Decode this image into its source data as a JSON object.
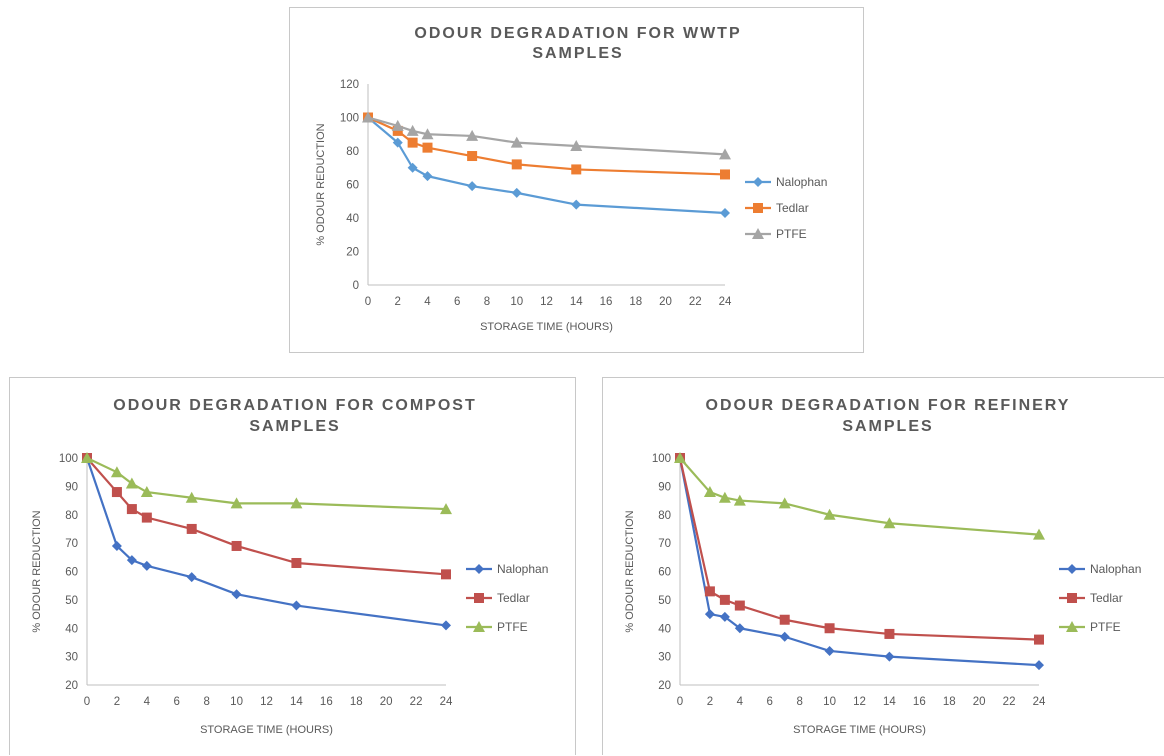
{
  "chart_data": [
    {
      "id": "wwtp",
      "type": "line",
      "title_lines": [
        "ODOUR DEGRADATION FOR WWTP",
        "SAMPLES"
      ],
      "xlabel": "STORAGE TIME (HOURS)",
      "ylabel": "% ODOUR REDUCTION",
      "x_ticks": [
        0,
        2,
        4,
        6,
        8,
        10,
        12,
        14,
        16,
        18,
        20,
        22,
        24
      ],
      "y_ticks": [
        0,
        20,
        40,
        60,
        80,
        100,
        120
      ],
      "xlim": [
        0,
        24
      ],
      "ylim": [
        0,
        120
      ],
      "grid": false,
      "legend_position": "right",
      "series": [
        {
          "name": "Nalophan",
          "color": "#5b9bd5",
          "marker": "diamond",
          "x": [
            0,
            2,
            3,
            4,
            7,
            10,
            14,
            24
          ],
          "values": [
            100,
            85,
            70,
            65,
            59,
            55,
            48,
            43
          ]
        },
        {
          "name": "Tedlar",
          "color": "#ed7d31",
          "marker": "square",
          "x": [
            0,
            2,
            3,
            4,
            7,
            10,
            14,
            24
          ],
          "values": [
            100,
            92,
            85,
            82,
            77,
            72,
            69,
            66
          ]
        },
        {
          "name": "PTFE",
          "color": "#a5a5a5",
          "marker": "triangle",
          "x": [
            0,
            2,
            3,
            4,
            7,
            10,
            14,
            24
          ],
          "values": [
            100,
            95,
            92,
            90,
            89,
            85,
            83,
            78
          ]
        }
      ]
    },
    {
      "id": "compost",
      "type": "line",
      "title_lines": [
        "ODOUR DEGRADATION FOR COMPOST",
        "SAMPLES"
      ],
      "xlabel": "STORAGE TIME (HOURS)",
      "ylabel": "% ODOUR REDUCTION",
      "x_ticks": [
        0,
        2,
        4,
        6,
        8,
        10,
        12,
        14,
        16,
        18,
        20,
        22,
        24
      ],
      "y_ticks": [
        20,
        30,
        40,
        50,
        60,
        70,
        80,
        90,
        100
      ],
      "xlim": [
        0,
        24
      ],
      "ylim": [
        20,
        100
      ],
      "grid": false,
      "legend_position": "right",
      "series": [
        {
          "name": "Nalophan",
          "color": "#4472c4",
          "marker": "diamond",
          "x": [
            0,
            2,
            3,
            4,
            7,
            10,
            14,
            24
          ],
          "values": [
            100,
            69,
            64,
            62,
            58,
            52,
            48,
            41
          ]
        },
        {
          "name": "Tedlar",
          "color": "#c0504d",
          "marker": "square",
          "x": [
            0,
            2,
            3,
            4,
            7,
            10,
            14,
            24
          ],
          "values": [
            100,
            88,
            82,
            79,
            75,
            69,
            63,
            59
          ]
        },
        {
          "name": "PTFE",
          "color": "#9bbb59",
          "marker": "triangle",
          "x": [
            0,
            2,
            3,
            4,
            7,
            10,
            14,
            24
          ],
          "values": [
            100,
            95,
            91,
            88,
            86,
            84,
            84,
            82
          ]
        }
      ]
    },
    {
      "id": "refinery",
      "type": "line",
      "title_lines": [
        "ODOUR DEGRADATION FOR REFINERY",
        "SAMPLES"
      ],
      "xlabel": "STORAGE TIME (HOURS)",
      "ylabel": "% ODOUR REDUCTION",
      "x_ticks": [
        0,
        2,
        4,
        6,
        8,
        10,
        12,
        14,
        16,
        18,
        20,
        22,
        24
      ],
      "y_ticks": [
        20,
        30,
        40,
        50,
        60,
        70,
        80,
        90,
        100
      ],
      "xlim": [
        0,
        24
      ],
      "ylim": [
        20,
        100
      ],
      "grid": false,
      "legend_position": "right",
      "series": [
        {
          "name": "Nalophan",
          "color": "#4472c4",
          "marker": "diamond",
          "x": [
            0,
            2,
            3,
            4,
            7,
            10,
            14,
            24
          ],
          "values": [
            100,
            45,
            44,
            40,
            37,
            32,
            30,
            27
          ]
        },
        {
          "name": "Tedlar",
          "color": "#c0504d",
          "marker": "square",
          "x": [
            0,
            2,
            3,
            4,
            7,
            10,
            14,
            24
          ],
          "values": [
            100,
            53,
            50,
            48,
            43,
            40,
            38,
            36
          ]
        },
        {
          "name": "PTFE",
          "color": "#9bbb59",
          "marker": "triangle",
          "x": [
            0,
            2,
            3,
            4,
            7,
            10,
            14,
            24
          ],
          "values": [
            100,
            88,
            86,
            85,
            84,
            80,
            77,
            73
          ]
        }
      ]
    }
  ]
}
